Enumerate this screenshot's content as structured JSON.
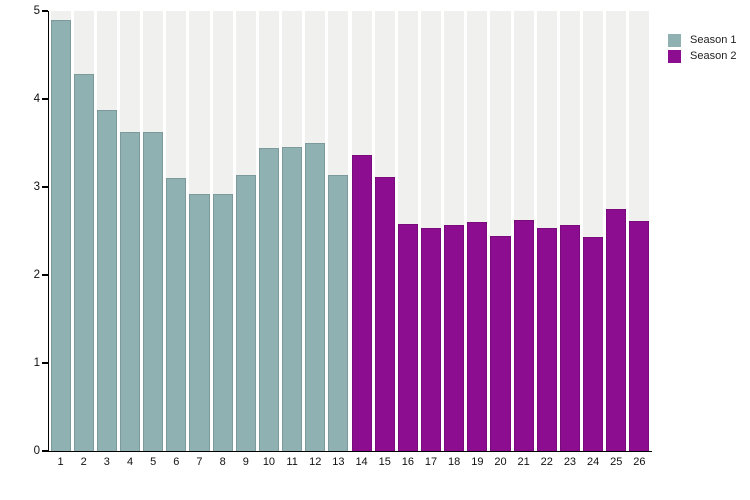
{
  "chart_data": {
    "type": "bar",
    "title": "",
    "xlabel": "",
    "ylabel": "",
    "categories": [
      "1",
      "2",
      "3",
      "4",
      "5",
      "6",
      "7",
      "8",
      "9",
      "10",
      "11",
      "12",
      "13",
      "14",
      "15",
      "16",
      "17",
      "18",
      "19",
      "20",
      "21",
      "22",
      "23",
      "24",
      "25",
      "26"
    ],
    "series": [
      {
        "name": "Season 1",
        "color": "#8fb1b2",
        "categories": [
          "1",
          "2",
          "3",
          "4",
          "5",
          "6",
          "7",
          "8",
          "9",
          "10",
          "11",
          "12",
          "13"
        ],
        "values": [
          4.9,
          4.28,
          3.88,
          3.62,
          3.62,
          3.1,
          2.92,
          2.92,
          3.14,
          3.44,
          3.46,
          3.5,
          3.14
        ]
      },
      {
        "name": "Season 2",
        "color": "#8c0d8f",
        "categories": [
          "14",
          "15",
          "16",
          "17",
          "18",
          "19",
          "20",
          "21",
          "22",
          "23",
          "24",
          "25",
          "26"
        ],
        "values": [
          3.36,
          3.11,
          2.58,
          2.53,
          2.57,
          2.6,
          2.44,
          2.62,
          2.53,
          2.57,
          2.43,
          2.75,
          2.61
        ]
      }
    ],
    "ylim": [
      0,
      5
    ],
    "yticks": [
      0,
      1,
      2,
      3,
      4,
      5
    ],
    "grid": "off",
    "plot_background_strip_color": "#f0f0ef",
    "legend_position": "top-right"
  }
}
